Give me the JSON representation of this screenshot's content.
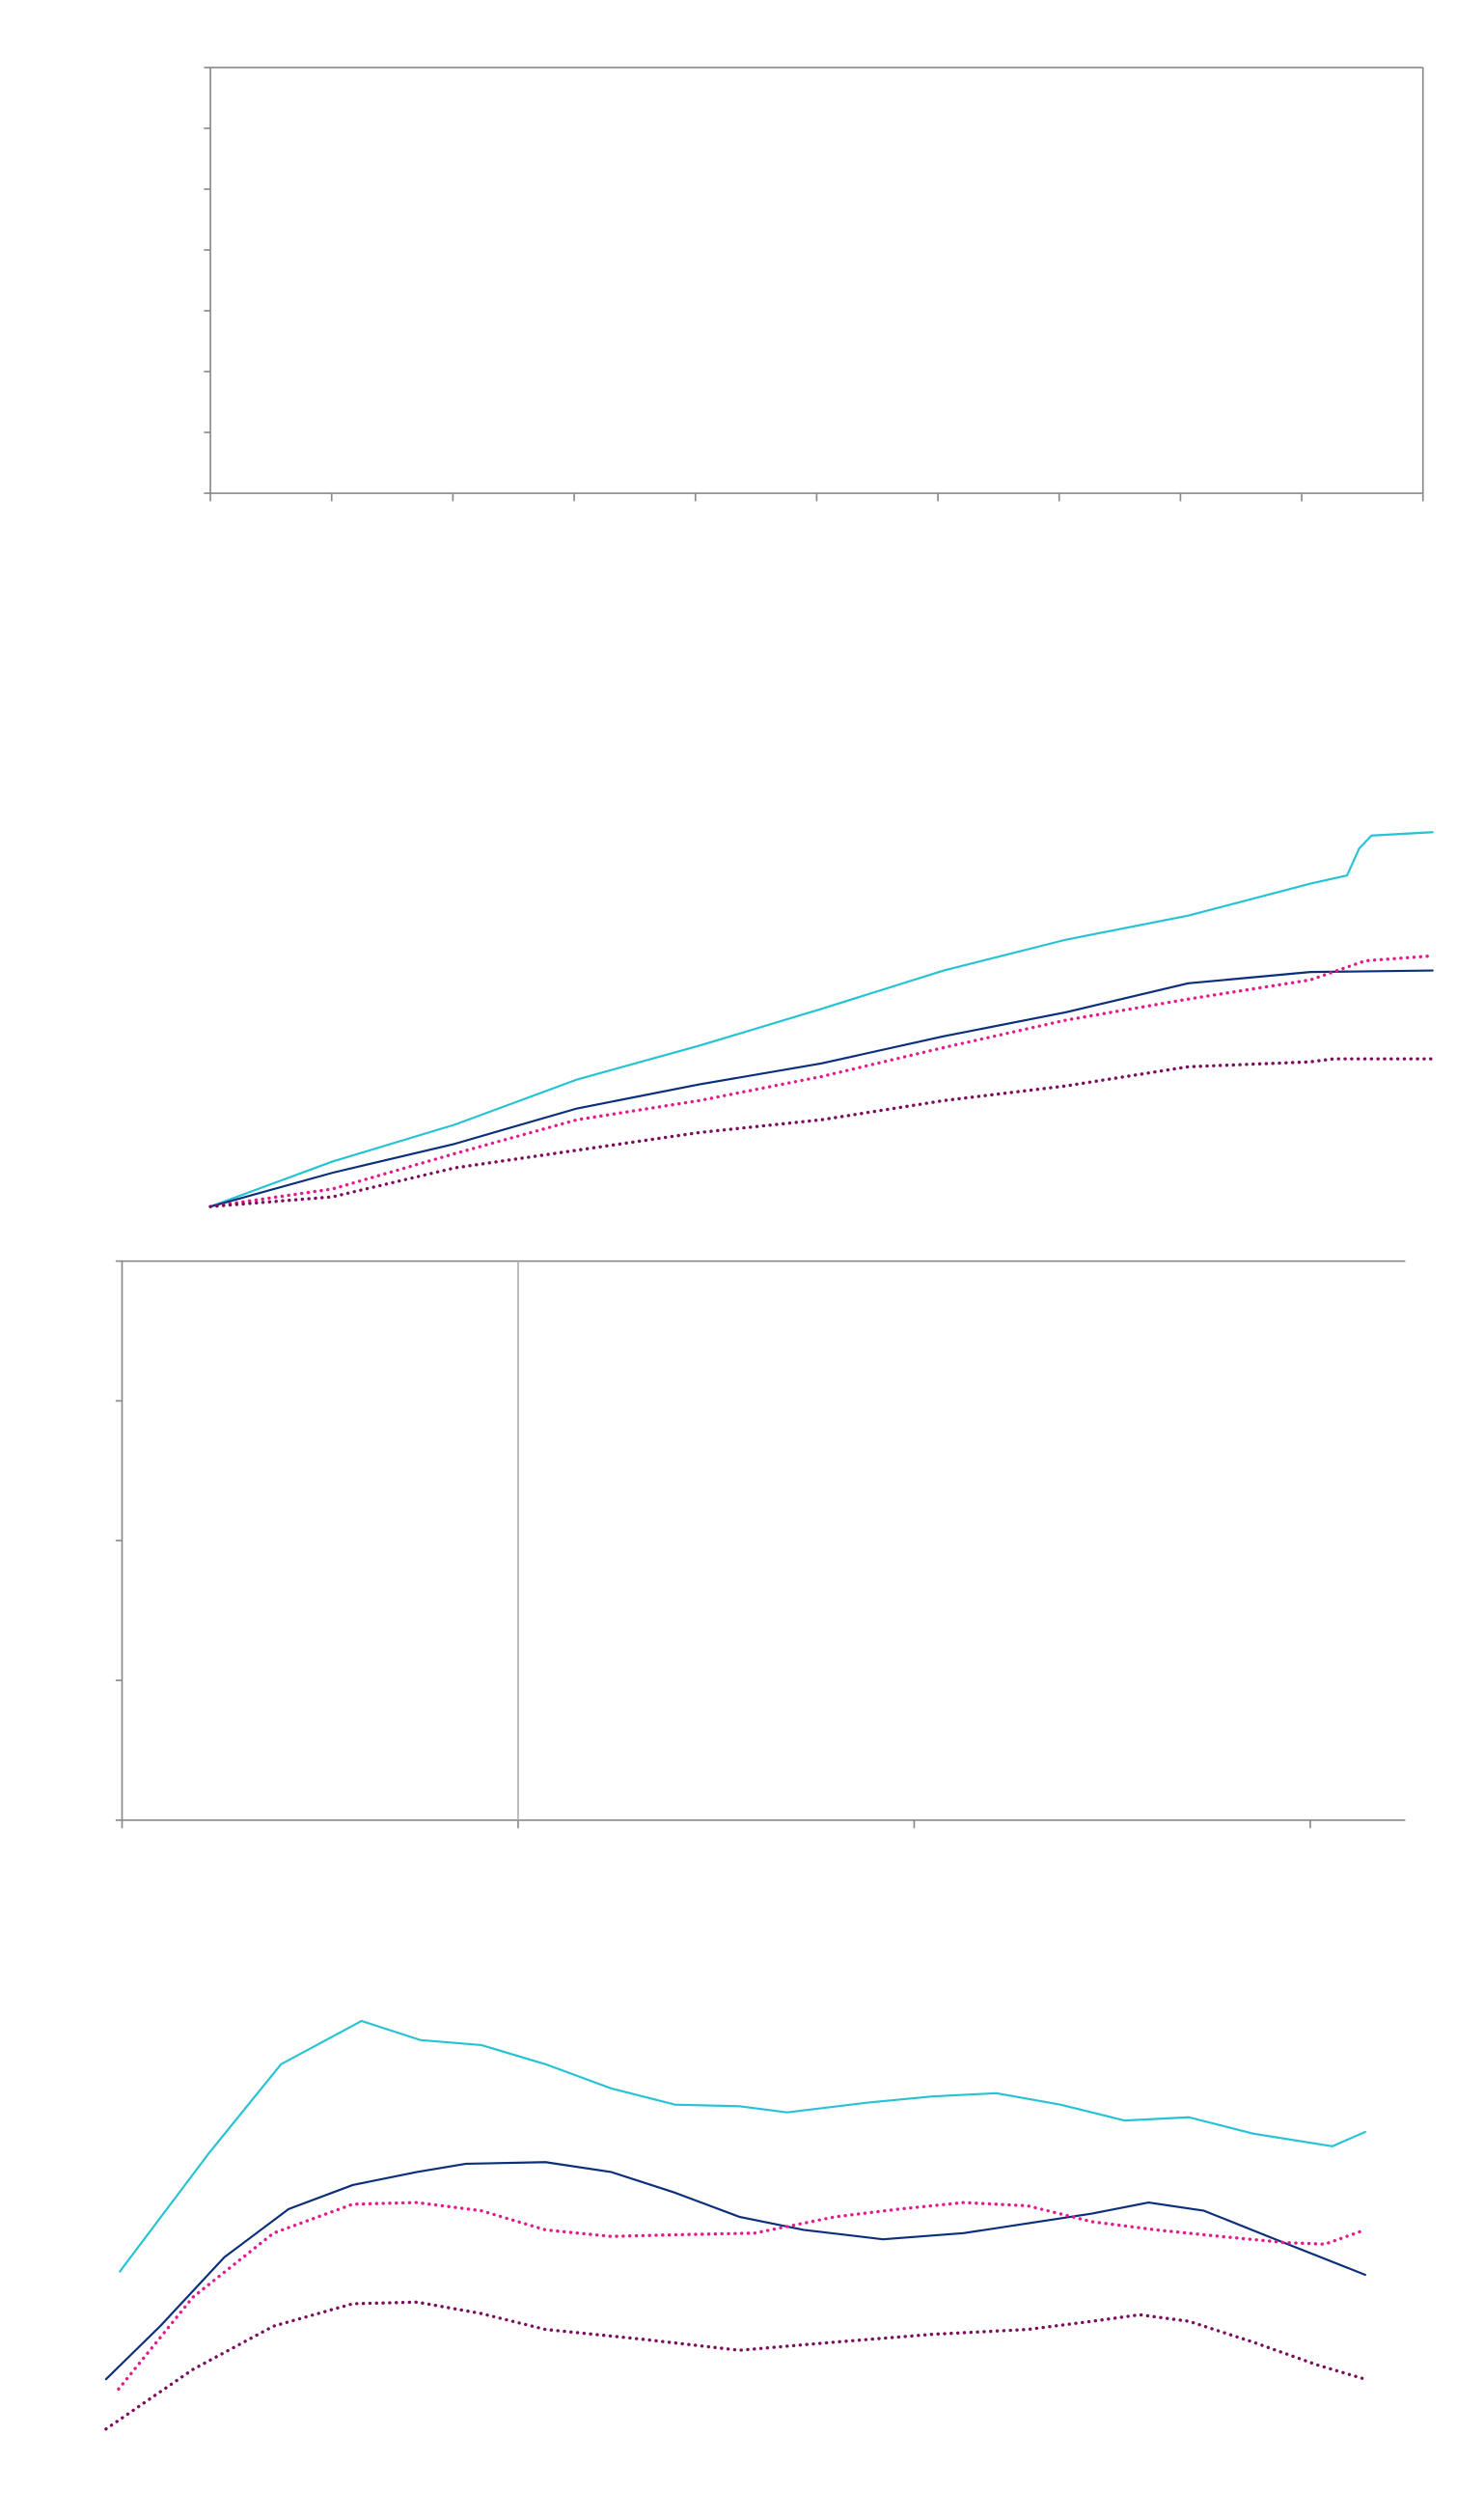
{
  "chart_data": [
    {
      "type": "line",
      "series": [],
      "xlim": [
        0,
        10
      ],
      "ylim": [
        0,
        7
      ],
      "xticks": [
        0,
        1,
        2,
        3,
        4,
        5,
        6,
        7,
        8,
        9,
        10
      ],
      "yticks": [
        0,
        1,
        2,
        3,
        4,
        5,
        6,
        7
      ],
      "box": true
    },
    {
      "type": "line",
      "series": [],
      "xlim": [
        0,
        3.24
      ],
      "ylim": [
        0,
        4
      ],
      "xticks": [
        0,
        1,
        2,
        3
      ],
      "yticks": [
        0,
        1,
        2,
        3,
        4
      ],
      "box": false,
      "vline": 1
    },
    {
      "type": "line",
      "xlim": [
        0,
        100
      ],
      "ylim": [
        0,
        100
      ],
      "series": [
        {
          "color": "#27c3d5",
          "dash": false,
          "x": [
            0,
            10,
            20,
            30,
            40,
            50,
            60,
            70,
            80,
            90,
            93,
            94,
            95,
            100
          ],
          "values": [
            0.4,
            12.4,
            22.2,
            34.2,
            43.2,
            53.0,
            63.2,
            71.4,
            77.8,
            86.3,
            88.5,
            95.7,
            99.1,
            100
          ]
        },
        {
          "color": "#0b2f7a",
          "dash": false,
          "x": [
            0,
            10,
            20,
            30,
            40,
            50,
            60,
            70,
            80,
            90,
            100
          ],
          "values": [
            0.4,
            9.4,
            17.1,
            26.5,
            32.9,
            38.5,
            45.7,
            52.1,
            59.8,
            62.8,
            63.2
          ]
        },
        {
          "color": "#e6198a",
          "dash": true,
          "x": [
            0,
            10,
            20,
            30,
            40,
            50,
            60,
            70,
            80,
            90,
            94.5,
            100
          ],
          "values": [
            0.4,
            5.1,
            14.5,
            23.5,
            28.6,
            35.0,
            42.7,
            50.0,
            55.6,
            60.7,
            65.8,
            67.1
          ]
        },
        {
          "color": "#7a0d5c",
          "dash": true,
          "x": [
            0,
            10,
            20,
            30,
            40,
            50,
            60,
            70,
            80,
            90,
            91.9,
            100
          ],
          "values": [
            0.4,
            3.0,
            10.7,
            15.4,
            20.1,
            23.5,
            28.6,
            32.5,
            37.6,
            38.9,
            39.7,
            39.7
          ]
        }
      ]
    },
    {
      "type": "line",
      "xlim": [
        0,
        100
      ],
      "ylim": [
        0,
        100
      ],
      "series": [
        {
          "color": "#27c3d5",
          "dash": false,
          "x": [
            1.1,
            8.2,
            13.9,
            20.3,
            25.0,
            29.8,
            34.9,
            40.1,
            45.2,
            50.3,
            54.1,
            60.5,
            65.6,
            70.7,
            75.8,
            80.9,
            86.0,
            91.1,
            97.4,
            100
          ],
          "values": [
            38.6,
            67.7,
            89.4,
            100,
            95.3,
            94.1,
            89.4,
            83.5,
            79.5,
            79.1,
            77.6,
            80.0,
            81.5,
            82.3,
            79.5,
            75.6,
            76.4,
            72.4,
            69.3,
            72.8
          ]
        },
        {
          "color": "#0b2f7a",
          "dash": false,
          "x": [
            0,
            4.3,
            9.4,
            14.5,
            19.6,
            24.7,
            28.6,
            34.9,
            40.1,
            45.2,
            50.3,
            55.4,
            61.7,
            68.1,
            73.2,
            78.3,
            82.8,
            87.2,
            92.3,
            100
          ],
          "values": [
            12.2,
            25.2,
            42.1,
            53.9,
            59.8,
            63.0,
            65.0,
            65.4,
            63.0,
            57.9,
            52.0,
            48.8,
            46.5,
            48.0,
            50.4,
            52.8,
            55.5,
            53.5,
            47.2,
            37.8
          ]
        },
        {
          "color": "#e6198a",
          "dash": true,
          "x": [
            1.0,
            6.9,
            13.3,
            19.6,
            24.7,
            29.8,
            34.9,
            40.1,
            45.2,
            51.5,
            57.9,
            63.0,
            68.1,
            73.2,
            78.3,
            83.4,
            88.5,
            93.6,
            96.8,
            100
          ],
          "values": [
            9.8,
            32.3,
            48.0,
            55.1,
            55.5,
            53.5,
            48.8,
            47.2,
            47.6,
            48.0,
            52.0,
            53.9,
            55.5,
            54.7,
            50.8,
            48.8,
            47.2,
            45.7,
            45.3,
            48.8
          ]
        },
        {
          "color": "#7a0d5c",
          "dash": true,
          "x": [
            0,
            6.9,
            13.3,
            19.6,
            24.7,
            29.8,
            34.9,
            42.6,
            50.3,
            57.9,
            65.6,
            73.2,
            78.3,
            82.1,
            86.0,
            91.1,
            96.2,
            100
          ],
          "values": [
            0,
            14.6,
            25.2,
            30.7,
            31.1,
            28.3,
            24.4,
            22.0,
            19.3,
            21.3,
            23.2,
            24.4,
            26.4,
            28.0,
            26.4,
            21.3,
            15.7,
            12.2
          ]
        }
      ]
    }
  ]
}
